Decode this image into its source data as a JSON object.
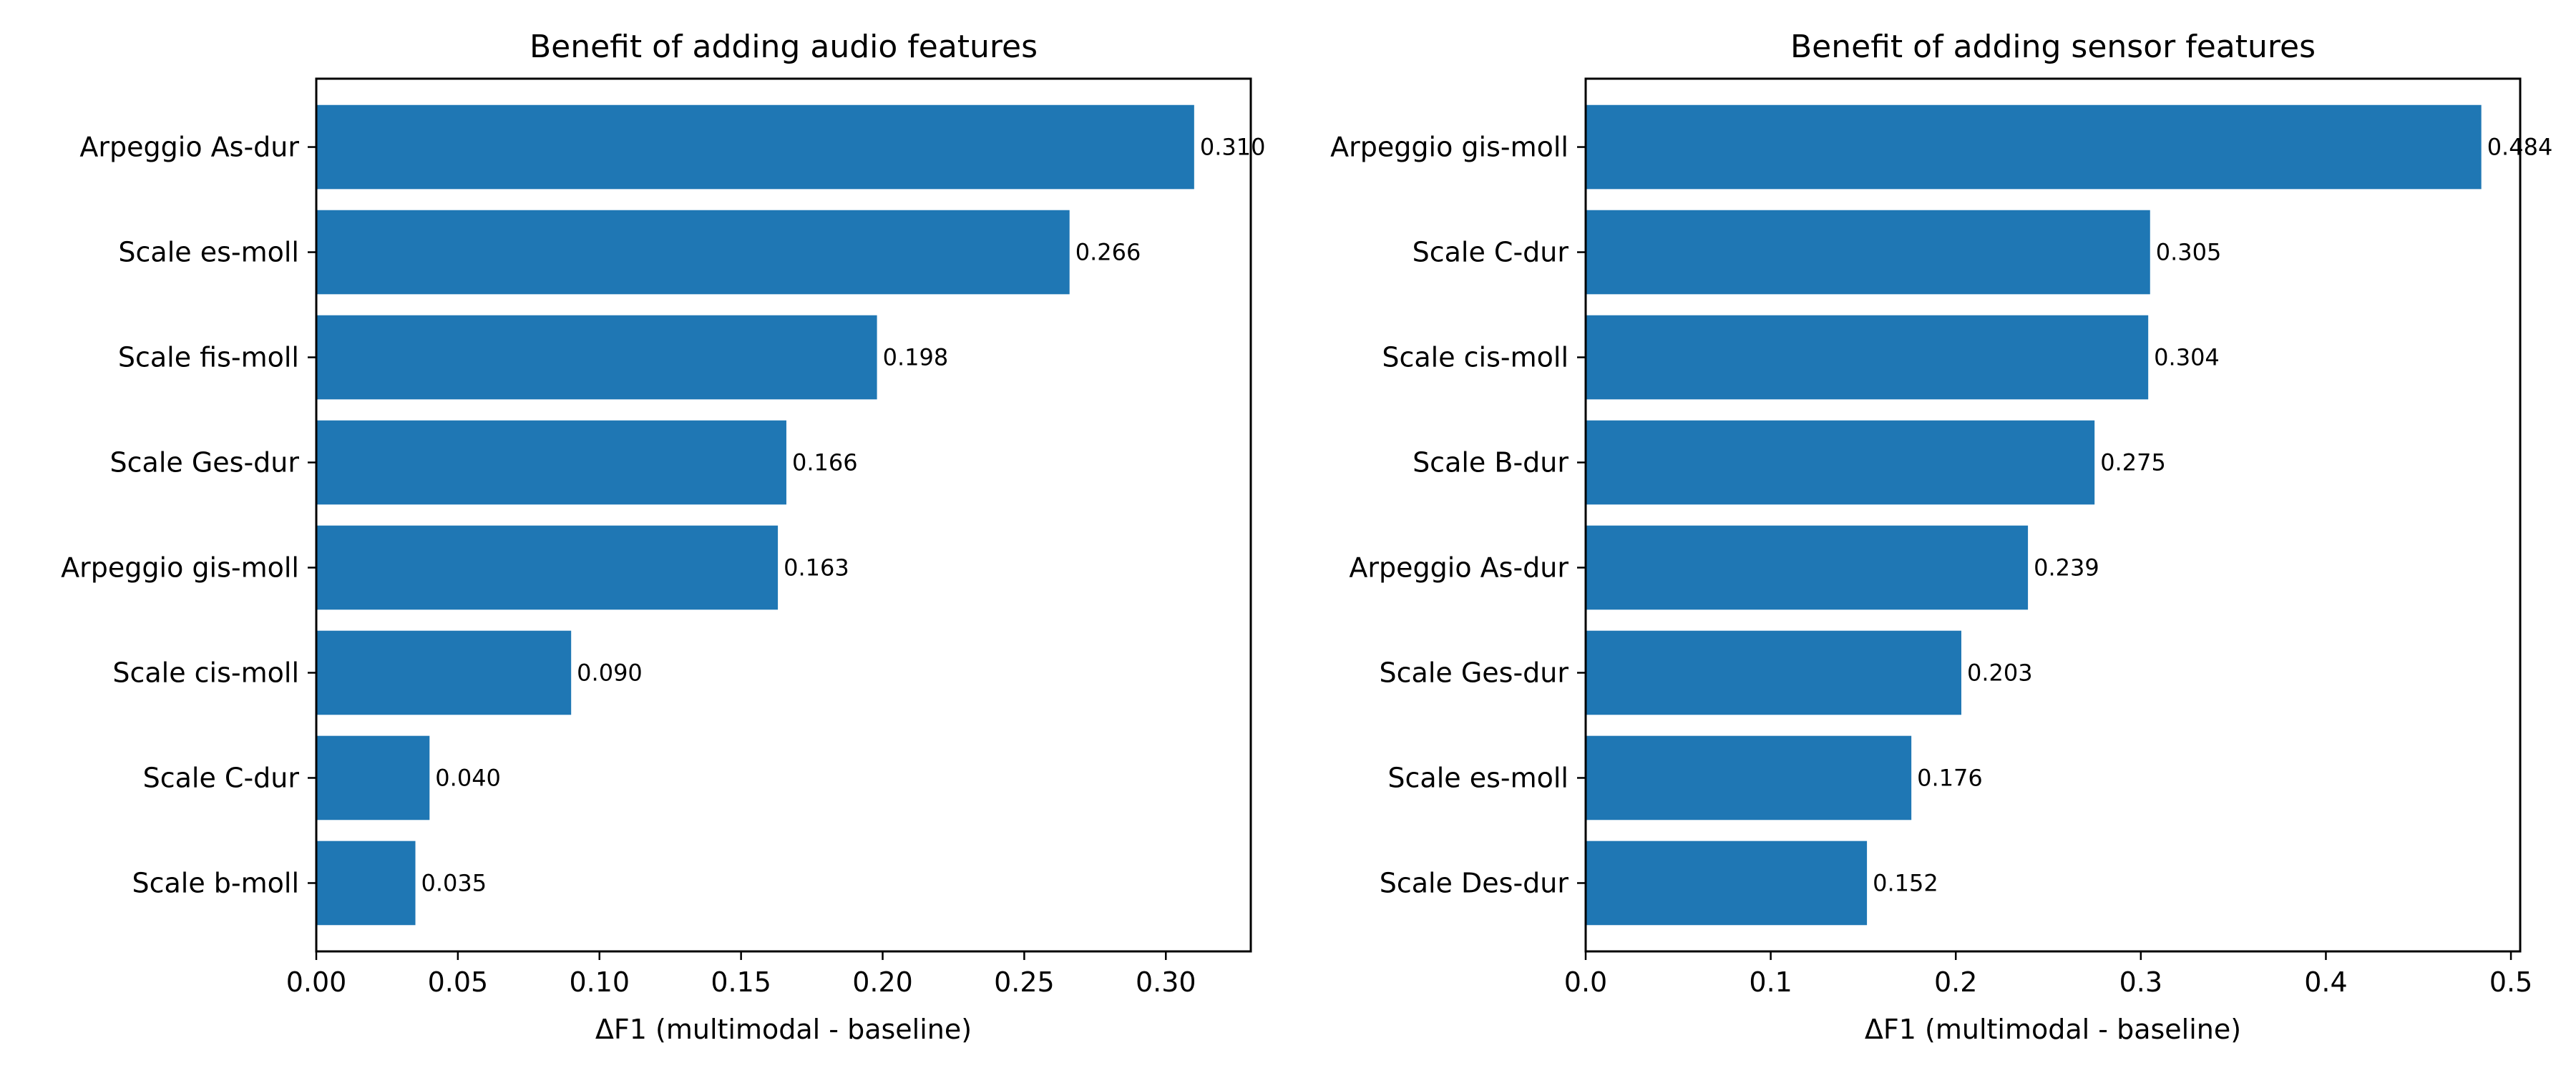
{
  "chart_data": [
    {
      "type": "bar",
      "orientation": "horizontal",
      "title": "Benefit of adding audio features",
      "xlabel": "ΔF1 (multimodal - baseline)",
      "ylabel": "",
      "categories": [
        "Arpeggio As-dur",
        "Scale es-moll",
        "Scale fis-moll",
        "Scale Ges-dur",
        "Arpeggio gis-moll",
        "Scale cis-moll",
        "Scale C-dur",
        "Scale b-moll"
      ],
      "values": [
        0.31,
        0.266,
        0.198,
        0.166,
        0.163,
        0.09,
        0.04,
        0.035
      ],
      "value_labels": [
        "0.310",
        "0.266",
        "0.198",
        "0.166",
        "0.163",
        "0.090",
        "0.040",
        "0.035"
      ],
      "xlim": [
        0,
        0.33
      ],
      "xticks": [
        0.0,
        0.05,
        0.1,
        0.15,
        0.2,
        0.25,
        0.3
      ],
      "xtick_labels": [
        "0.00",
        "0.05",
        "0.10",
        "0.15",
        "0.20",
        "0.25",
        "0.30"
      ],
      "bar_color": "#1f77b4",
      "grid": false,
      "legend": "none"
    },
    {
      "type": "bar",
      "orientation": "horizontal",
      "title": "Benefit of adding sensor features",
      "xlabel": "ΔF1 (multimodal - baseline)",
      "ylabel": "",
      "categories": [
        "Arpeggio gis-moll",
        "Scale C-dur",
        "Scale cis-moll",
        "Scale B-dur",
        "Arpeggio As-dur",
        "Scale Ges-dur",
        "Scale es-moll",
        "Scale Des-dur"
      ],
      "values": [
        0.484,
        0.305,
        0.304,
        0.275,
        0.239,
        0.203,
        0.176,
        0.152
      ],
      "value_labels": [
        "0.484",
        "0.305",
        "0.304",
        "0.275",
        "0.239",
        "0.203",
        "0.176",
        "0.152"
      ],
      "xlim": [
        0,
        0.505
      ],
      "xticks": [
        0.0,
        0.1,
        0.2,
        0.3,
        0.4,
        0.5
      ],
      "xtick_labels": [
        "0.0",
        "0.1",
        "0.2",
        "0.3",
        "0.4",
        "0.5"
      ],
      "bar_color": "#1f77b4",
      "grid": false,
      "legend": "none"
    }
  ]
}
